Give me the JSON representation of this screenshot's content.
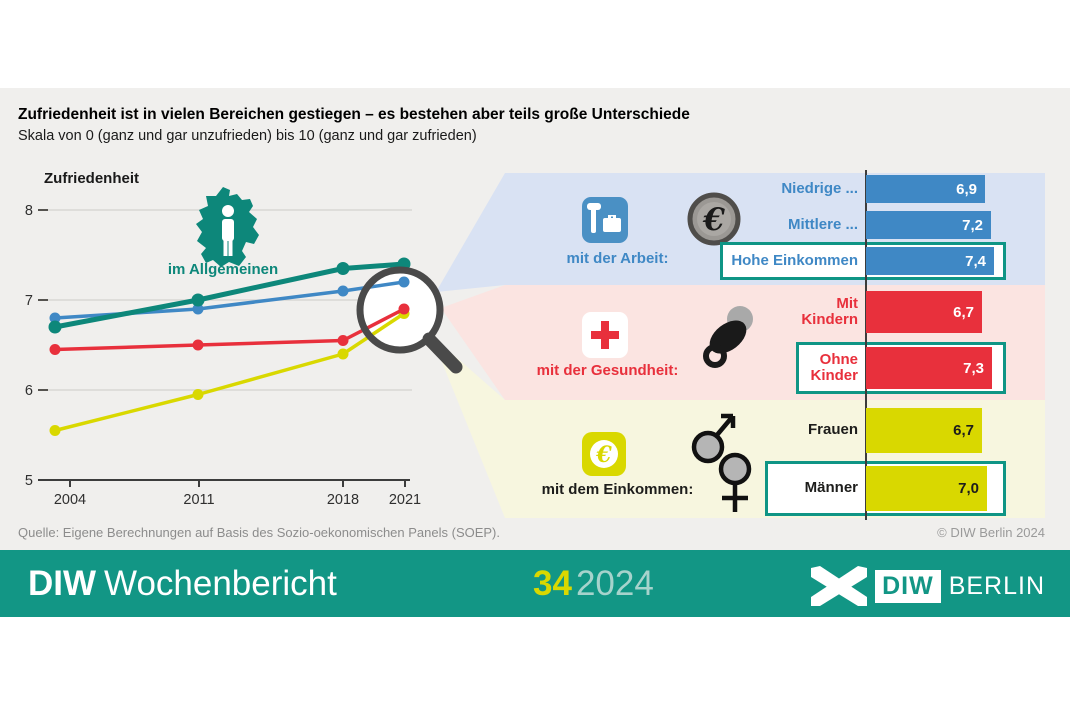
{
  "header": {
    "title": "Zufriedenheit ist in vielen Bereichen gestiegen – es bestehen aber teils große Unterschiede",
    "subtitle": "Skala von 0 (ganz und gar unzufrieden) bis 10 (ganz und gar zufrieden)"
  },
  "source": "Quelle: Eigene Berechnungen auf Basis des Sozio-oekonomischen Panels (SOEP).",
  "copyright": "© DIW Berlin 2024",
  "footer": {
    "publication_bold": "DIW",
    "publication_light": "Wochenbericht",
    "issue": "34",
    "year": "2024",
    "logo_diw": "DIW",
    "logo_berlin": "BERLIN"
  },
  "colors": {
    "brand_teal": "#129685",
    "line_teal": "#0d877a",
    "blue": "#3f88c5",
    "red": "#e8303c",
    "yellow": "#d9d800",
    "panel_blue_bg": "#d9e2f3",
    "panel_red_bg": "#fbe4e1",
    "panel_yellow_bg": "#f7f6df",
    "highlight_border": "#0f9585"
  },
  "icons": {
    "general": "germany-map-with-person",
    "arbeit": "hammer-and-briefcase",
    "arbeit_extra": "euro-coin-grey",
    "gesundheit": "red-cross",
    "gesundheit_extra": "pacifier",
    "einkommen": "euro-coin-yellow",
    "einkommen_extra": "male-female-symbols",
    "lens": "magnifying-glass"
  },
  "chart_data": [
    {
      "type": "line",
      "title": "Zufriedenheit",
      "x_labels": [
        "2004",
        "2011",
        "2018",
        "2021"
      ],
      "ylim": [
        5,
        8
      ],
      "yticks": [
        8,
        7,
        6,
        5
      ],
      "grid": true,
      "legend_visible": "im Allgemeinen",
      "series": [
        {
          "name": "im Allgemeinen",
          "color": "#0d877a",
          "values": [
            6.7,
            7.0,
            7.35,
            7.4
          ]
        },
        {
          "name": "mit der Arbeit",
          "color": "#3f88c5",
          "values": [
            6.8,
            6.9,
            7.1,
            7.2
          ]
        },
        {
          "name": "mit der Gesundheit",
          "color": "#e8303c",
          "values": [
            6.45,
            6.5,
            6.55,
            6.9
          ]
        },
        {
          "name": "mit dem Einkommen",
          "color": "#d9d800",
          "values": [
            5.55,
            5.95,
            6.4,
            6.85
          ]
        }
      ]
    },
    {
      "type": "bar",
      "value_scale": [
        0,
        10
      ],
      "groups": [
        {
          "id": "arbeit",
          "label": "mit der Arbeit:",
          "color": "#3f88c5",
          "label_color": "#3f88c5",
          "value_color": "#ffffff",
          "bars": [
            {
              "label": "Niedrige ...",
              "value": 6.9,
              "display": "6,9",
              "highlight": false
            },
            {
              "label": "Mittlere ...",
              "value": 7.2,
              "display": "7,2",
              "highlight": false
            },
            {
              "label": "Hohe Einkommen",
              "value": 7.4,
              "display": "7,4",
              "highlight": true
            }
          ]
        },
        {
          "id": "gesundheit",
          "label": "mit der Gesundheit:",
          "color": "#e8303c",
          "label_color": "#e8303c",
          "value_color": "#ffffff",
          "bars": [
            {
              "label": "Mit\nKindern",
              "value": 6.7,
              "display": "6,7",
              "highlight": false
            },
            {
              "label": "Ohne\nKinder",
              "value": 7.3,
              "display": "7,3",
              "highlight": true
            }
          ]
        },
        {
          "id": "einkommen",
          "label": "mit dem Einkommen:",
          "color": "#d9d800",
          "label_color": "#1d1d1b",
          "value_color": "#1d1d1b",
          "bars": [
            {
              "label": "Frauen",
              "value": 6.7,
              "display": "6,7",
              "highlight": false
            },
            {
              "label": "Männer",
              "value": 7.0,
              "display": "7,0",
              "highlight": true
            }
          ]
        }
      ]
    }
  ]
}
